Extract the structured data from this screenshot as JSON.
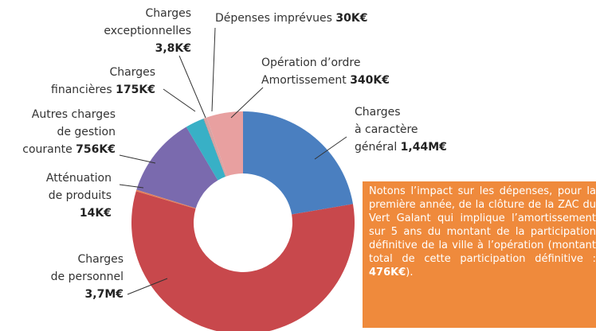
{
  "chart_data": {
    "type": "donut",
    "categories": [
      "Charges\nà caractère\ngénéral",
      "Charges\nde personnel",
      "Atténuation\nde produits",
      "Autres charges\nde gestion\ncourante",
      "Charges\nfinancières",
      "Charges\nexceptionnelles",
      "Dépenses imprévues",
      "Opération d’ordre\nAmortissement"
    ],
    "values": [
      1440,
      3700,
      14,
      756,
      175,
      3.8,
      30,
      340
    ],
    "value_labels": [
      "1,44M€",
      "3,7M€",
      "14K€",
      "756K€",
      "175K€",
      "3,8K€",
      "30K€",
      "340K€"
    ],
    "colors": [
      "#4a7fc0",
      "#c8484c",
      "#e3805a",
      "#7a6aae",
      "#38b0c6",
      "#777777",
      "#d9a3a3",
      "#e8a0a0"
    ],
    "note": {
      "text": "Notons l’impact sur les dépenses, pour la première année, de la clôture de la ZAC du Vert Galant qui implique l’amortissement sur 5 ans du montant de la participation définitive de la ville à l’opération (montant total de cette participation définitive : ",
      "value": "476K€",
      "end": ")."
    }
  }
}
